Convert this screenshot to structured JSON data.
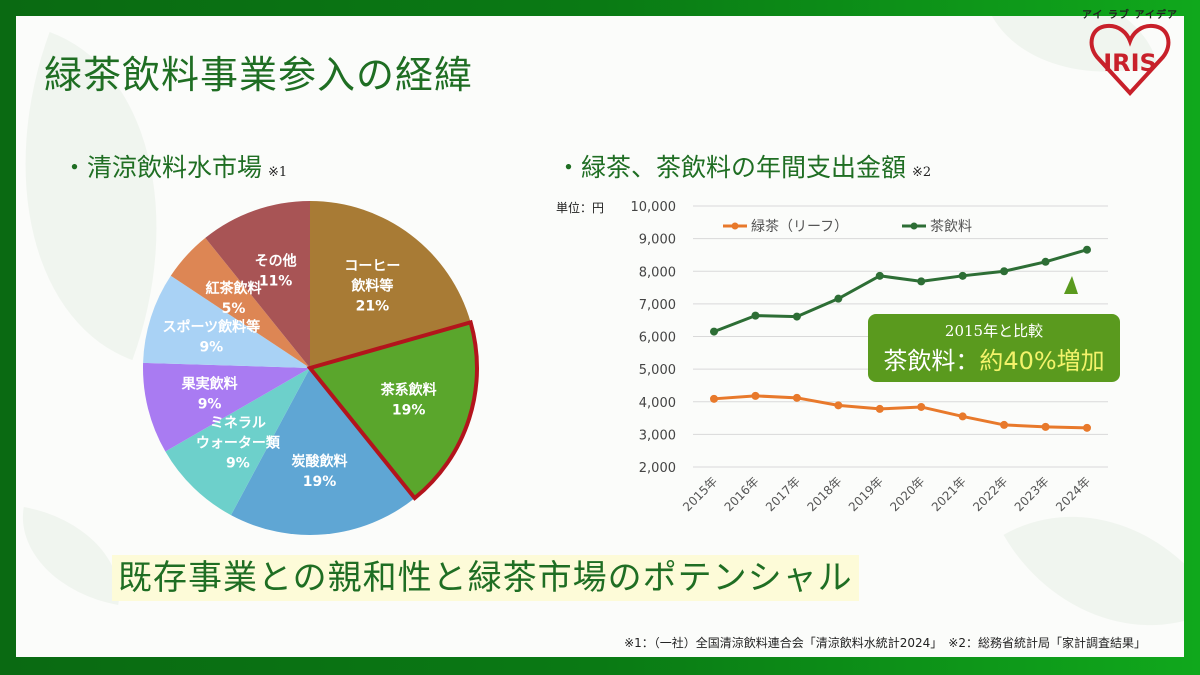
{
  "page": {
    "title": "緑茶飲料事業参入の経緯",
    "logo": {
      "tagline": "アイ ラブ アイデア",
      "brand": "IRIS"
    },
    "left_heading": "・清涼飲料水市場",
    "left_heading_note": "※1",
    "right_heading": "・緑茶、茶飲料の年間支出金額",
    "right_heading_note": "※2",
    "unit_label": "単位：円",
    "callout": {
      "line1": "2015年と比較",
      "line2_prefix": "茶飲料：",
      "line2_highlight": "約40%増加"
    },
    "banner": "既存事業との親和性と緑茶市場のポテンシャル",
    "footnote": "※1：（一社）全国清涼飲料連合会「清涼飲料水統計2024」　※2：総務省統計局「家計調査結果」"
  },
  "colors": {
    "frame_green": "#0a7a14",
    "heading_green": "#1f6e23",
    "highlight_outline": "#b3141c",
    "green_tea_line": "#e8792b",
    "tea_drink_line": "#2d6e35",
    "callout_bg": "#5a9a1e",
    "callout_highlight": "#f3f36a"
  },
  "chart_data": [
    {
      "type": "pie",
      "title": "清涼飲料水市場",
      "start": "12 o'clock, clockwise",
      "slices": [
        {
          "label": "コーヒー\n飲料等",
          "value": 21,
          "display": "21%",
          "color": "#a87b35",
          "highlighted": false
        },
        {
          "label": "茶系飲料",
          "value": 19,
          "display": "19%",
          "color": "#5aa62c",
          "highlighted": true
        },
        {
          "label": "炭酸飲料",
          "value": 19,
          "display": "19%",
          "color": "#5fa6d4",
          "highlighted": false
        },
        {
          "label": "ミネラル\nウォーター類",
          "value": 9,
          "display": "9%",
          "color": "#6dd0cb",
          "highlighted": false
        },
        {
          "label": "果実飲料",
          "value": 9,
          "display": "9%",
          "color": "#a97bf2",
          "highlighted": false
        },
        {
          "label": "スポーツ飲料等",
          "value": 9,
          "display": "9%",
          "color": "#a9d2f5",
          "highlighted": false
        },
        {
          "label": "紅茶飲料",
          "value": 5,
          "display": "5%",
          "color": "#dd8654",
          "highlighted": false
        },
        {
          "label": "その他",
          "value": 11,
          "display": "11%",
          "color": "#a85455",
          "highlighted": false
        }
      ]
    },
    {
      "type": "line",
      "title": "緑茶、茶飲料の年間支出金額",
      "ylabel": "単位：円",
      "ylim": [
        2000,
        10000
      ],
      "yticks": [
        2000,
        3000,
        4000,
        5000,
        6000,
        7000,
        8000,
        9000,
        10000
      ],
      "ytick_labels": [
        "2,000",
        "3,000",
        "4,000",
        "5,000",
        "6,000",
        "7,000",
        "8,000",
        "9,000",
        "10,000"
      ],
      "grid": true,
      "legend": "top-left",
      "categories": [
        "2015年",
        "2016年",
        "2017年",
        "2018年",
        "2019年",
        "2020年",
        "2021年",
        "2022年",
        "2023年",
        "2024年"
      ],
      "series": [
        {
          "name": "緑茶（リーフ）",
          "color": "#e8792b",
          "values": [
            4090,
            4180,
            4120,
            3890,
            3780,
            3840,
            3550,
            3290,
            3230,
            3200
          ]
        },
        {
          "name": "茶飲料",
          "color": "#2d6e35",
          "values": [
            6150,
            6640,
            6610,
            7160,
            7860,
            7690,
            7860,
            8000,
            8290,
            8660
          ]
        }
      ]
    }
  ]
}
